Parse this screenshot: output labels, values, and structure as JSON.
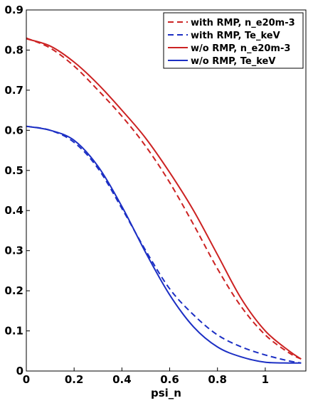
{
  "chart_data": {
    "type": "line",
    "xlabel": "psi_n",
    "ylabel": "",
    "title": "",
    "xlim": [
      0,
      1.17
    ],
    "ylim": [
      0,
      0.9
    ],
    "x_ticks": [
      "0",
      "0.2",
      "0.4",
      "0.6",
      "0.8",
      "1"
    ],
    "x_tick_values": [
      0,
      0.2,
      0.4,
      0.6,
      0.8,
      1.0
    ],
    "y_ticks": [
      "0",
      "0.1",
      "0.2",
      "0.3",
      "0.4",
      "0.5",
      "0.6",
      "0.7",
      "0.8",
      "0.9"
    ],
    "y_tick_values": [
      0,
      0.1,
      0.2,
      0.3,
      0.4,
      0.5,
      0.6,
      0.7,
      0.8,
      0.9
    ],
    "grid": false,
    "legend_position": "top-right",
    "series": [
      {
        "name": "with RMP, n_e20m-3",
        "color": "#cc2222",
        "dash": "dashed",
        "x": [
          0.0,
          0.1,
          0.2,
          0.3,
          0.4,
          0.5,
          0.6,
          0.7,
          0.8,
          0.9,
          1.0,
          1.1,
          1.15
        ],
        "y": [
          0.83,
          0.805,
          0.76,
          0.7,
          0.635,
          0.56,
          0.47,
          0.365,
          0.255,
          0.16,
          0.09,
          0.045,
          0.03
        ]
      },
      {
        "name": "with RMP, Te_keV",
        "color": "#1c2fc4",
        "dash": "dashed",
        "x": [
          0.0,
          0.1,
          0.2,
          0.3,
          0.4,
          0.5,
          0.6,
          0.7,
          0.8,
          0.9,
          1.0,
          1.1,
          1.15
        ],
        "y": [
          0.61,
          0.6,
          0.57,
          0.505,
          0.405,
          0.3,
          0.205,
          0.14,
          0.09,
          0.06,
          0.04,
          0.025,
          0.02
        ]
      },
      {
        "name": "w/o RMP, n_e20m-3",
        "color": "#cc2222",
        "dash": "solid",
        "x": [
          0.0,
          0.1,
          0.2,
          0.3,
          0.4,
          0.5,
          0.6,
          0.7,
          0.8,
          0.9,
          1.0,
          1.1,
          1.15
        ],
        "y": [
          0.828,
          0.81,
          0.77,
          0.715,
          0.65,
          0.58,
          0.495,
          0.4,
          0.29,
          0.18,
          0.1,
          0.05,
          0.03
        ]
      },
      {
        "name": "w/o RMP, Te_keV",
        "color": "#1c2fc4",
        "dash": "solid",
        "x": [
          0.0,
          0.1,
          0.2,
          0.3,
          0.4,
          0.5,
          0.6,
          0.7,
          0.8,
          0.9,
          1.0,
          1.1,
          1.15
        ],
        "y": [
          0.61,
          0.6,
          0.575,
          0.51,
          0.41,
          0.295,
          0.19,
          0.11,
          0.06,
          0.035,
          0.022,
          0.02,
          0.02
        ]
      }
    ]
  }
}
